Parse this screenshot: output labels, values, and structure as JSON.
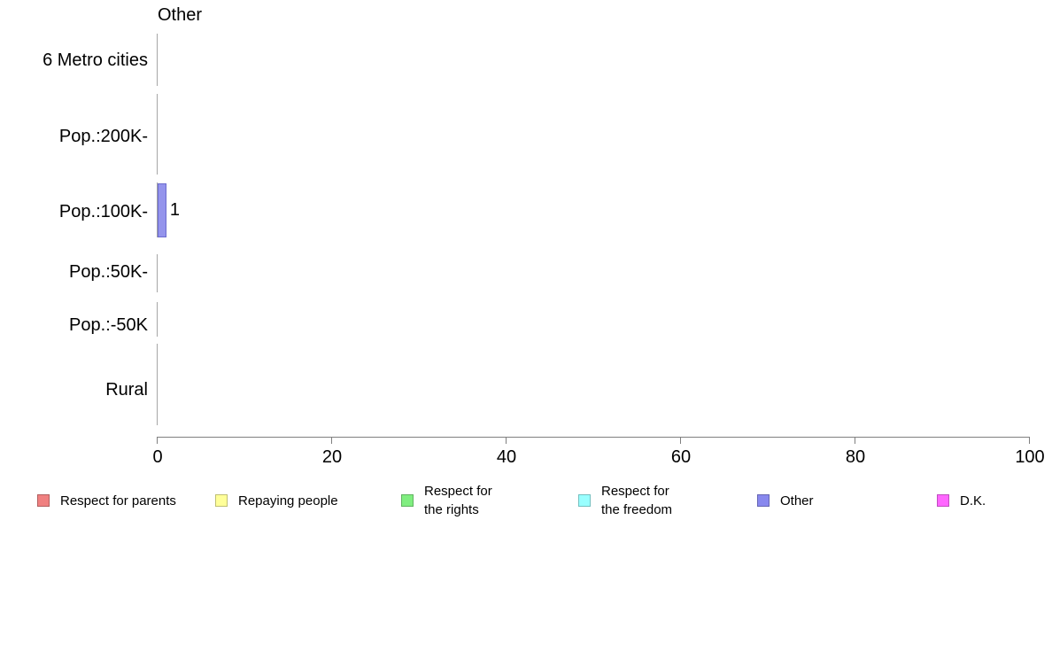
{
  "chart_data": {
    "type": "bar",
    "orientation": "horizontal",
    "title": "Other",
    "categories": [
      "6 Metro cities",
      "Pop.:200K-",
      "Pop.:100K-",
      "Pop.:50K-",
      "Pop.:-50K",
      "Rural"
    ],
    "series": [
      {
        "name": "Other",
        "values": [
          0,
          0,
          1,
          0,
          0,
          0
        ]
      }
    ],
    "value_labels": [
      "",
      "",
      "1",
      "",
      "",
      ""
    ],
    "x_ticks": [
      "0",
      "20",
      "40",
      "60",
      "80",
      "100"
    ],
    "xlim": [
      0,
      100
    ],
    "grid": false,
    "bar_color": "#9494EC",
    "bar_border_color": "#6B6BCE",
    "axis_color": "#7F7F7F",
    "band_line_color": "#A6A6A6",
    "legend_position": "bottom",
    "legend": [
      {
        "label": "Respect for parents",
        "color": "#F08080",
        "border": "#B25F5F"
      },
      {
        "label": "Repaying people",
        "color": "#FFFF99",
        "border": "#BFBF73"
      },
      {
        "label": "Respect for\nthe rights",
        "color": "#80EE80",
        "border": "#60B360"
      },
      {
        "label": "Respect for\nthe freedom",
        "color": "#99FFFF",
        "border": "#73BFBF"
      },
      {
        "label": "Other",
        "color": "#8888EE",
        "border": "#6666B3"
      },
      {
        "label": "D.K.",
        "color": "#FF66FF",
        "border": "#BF4DBF"
      }
    ]
  }
}
